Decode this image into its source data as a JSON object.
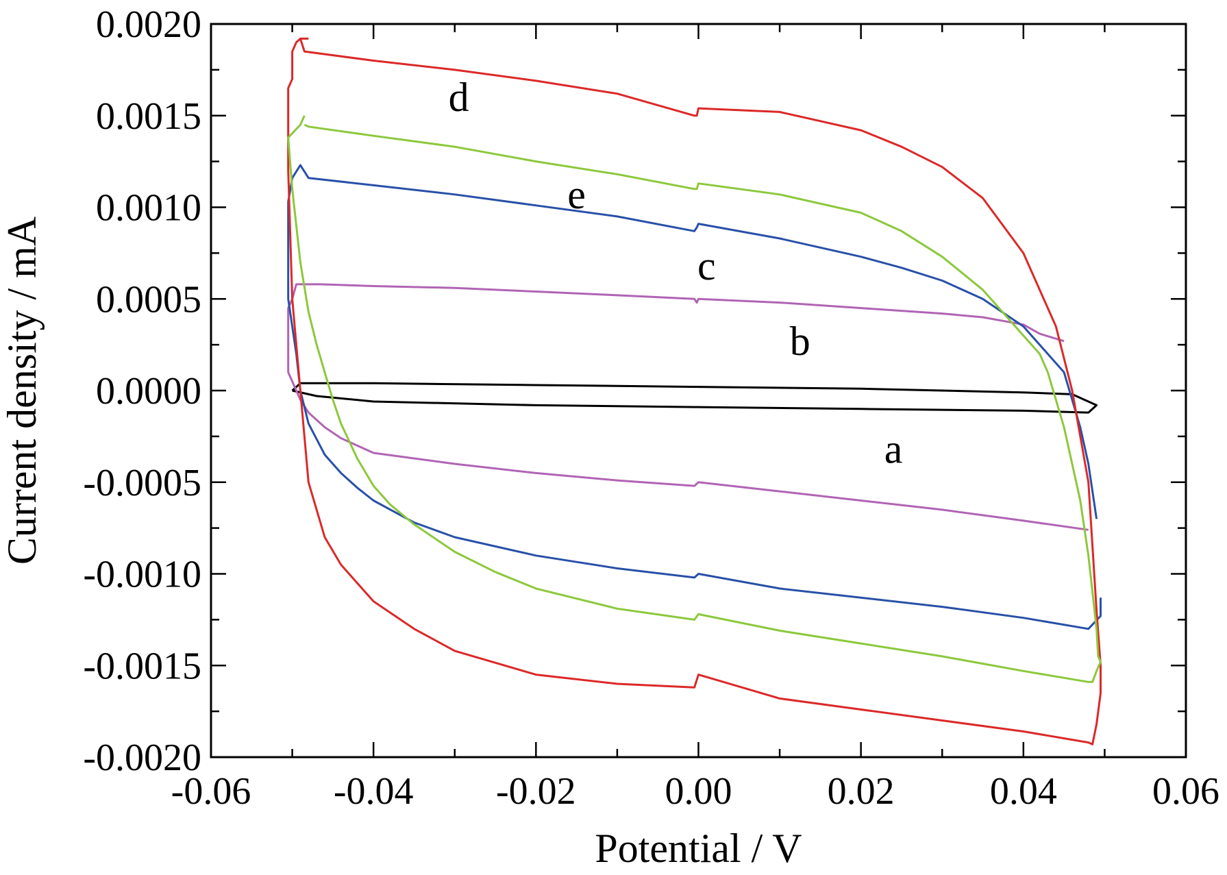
{
  "chart_data": {
    "type": "line",
    "xlabel": "Potential / V",
    "ylabel": "Current density / mA",
    "xlim": [
      -0.06,
      0.06
    ],
    "ylim": [
      -0.002,
      0.002
    ],
    "xticks": [
      -0.06,
      -0.04,
      -0.02,
      0.0,
      0.02,
      0.04,
      0.06
    ],
    "xtick_labels": [
      "-0.06",
      "-0.04",
      "-0.02",
      "0.00",
      "0.02",
      "0.04",
      "0.06"
    ],
    "yticks": [
      0.002,
      0.0015,
      0.001,
      0.0005,
      0.0,
      -0.0005,
      -0.001,
      -0.0015,
      -0.002
    ],
    "ytick_labels": [
      "0.0020",
      "0.0015",
      "0.0010",
      "0.0005",
      "0.0000",
      "-0.0005",
      "-0.0010",
      "-0.0015",
      "-0.0020"
    ],
    "grid": false,
    "series": [
      {
        "name": "a",
        "color": "#000000",
        "label_pos": [
          0.024,
          -0.00032
        ],
        "x": [
          -0.05,
          -0.049,
          -0.04,
          -0.02,
          0.0,
          0.02,
          0.04,
          0.046,
          0.049,
          0.048,
          0.04,
          0.02,
          0.0,
          -0.02,
          -0.04,
          -0.047,
          -0.05
        ],
        "y": [
          0.0,
          4e-05,
          4e-05,
          3e-05,
          2e-05,
          1e-05,
          -1e-05,
          -2e-05,
          -8e-05,
          -0.00012,
          -0.00011,
          -0.0001,
          -9e-05,
          -8e-05,
          -6e-05,
          -3e-05,
          0.0
        ]
      },
      {
        "name": "b",
        "color": "#b064b4",
        "label_pos": [
          0.0125,
          0.00027
        ],
        "x": [
          0.045,
          0.042,
          0.04,
          0.035,
          0.03,
          0.02,
          0.01,
          0.0,
          -0.0002,
          -0.0005,
          -0.01,
          -0.02,
          -0.03,
          -0.04,
          -0.0465,
          -0.049,
          -0.0495,
          -0.05,
          -0.0505,
          -0.0505,
          -0.049,
          -0.048,
          -0.046,
          -0.044,
          -0.042,
          -0.04,
          -0.03,
          -0.02,
          -0.01,
          -0.0005,
          0.0,
          0.01,
          0.02,
          0.03,
          0.04,
          0.048
        ],
        "y": [
          0.00027,
          0.00031,
          0.00036,
          0.0004,
          0.00042,
          0.00045,
          0.00048,
          0.0005,
          0.00048,
          0.0005,
          0.00052,
          0.00054,
          0.00056,
          0.00057,
          0.00058,
          0.00058,
          0.00058,
          0.0005,
          0.00045,
          0.0001,
          -5e-05,
          -0.00012,
          -0.0002,
          -0.00026,
          -0.0003,
          -0.00034,
          -0.0004,
          -0.00045,
          -0.00049,
          -0.00052,
          -0.0005,
          -0.00055,
          -0.0006,
          -0.00065,
          -0.00071,
          -0.00076
        ]
      },
      {
        "name": "c",
        "color": "#2850a8",
        "label_pos": [
          0.001,
          0.00068
        ],
        "x": [
          0.049,
          0.048,
          0.047,
          0.046,
          0.045,
          0.043,
          0.04,
          0.035,
          0.03,
          0.025,
          0.02,
          0.01,
          0.0,
          -0.0002,
          -0.0005,
          -0.01,
          -0.02,
          -0.03,
          -0.04,
          -0.048,
          -0.049,
          -0.05,
          -0.0505,
          -0.0505,
          -0.0495,
          -0.049,
          -0.048,
          -0.046,
          -0.044,
          -0.042,
          -0.04,
          -0.035,
          -0.03,
          -0.02,
          -0.01,
          -0.0005,
          0.0,
          0.01,
          0.02,
          0.03,
          0.04,
          0.048,
          0.0495,
          0.0495
        ],
        "y": [
          -0.0007,
          -0.0004,
          -0.0002,
          -5e-05,
          0.0001,
          0.0002,
          0.00035,
          0.0005,
          0.0006,
          0.00067,
          0.00073,
          0.00083,
          0.00091,
          0.00089,
          0.00087,
          0.00095,
          0.00101,
          0.00107,
          0.00112,
          0.00116,
          0.00123,
          0.00116,
          0.00103,
          0.0005,
          0.0002,
          0.0,
          -0.00018,
          -0.00035,
          -0.00045,
          -0.00053,
          -0.0006,
          -0.00072,
          -0.0008,
          -0.0009,
          -0.00097,
          -0.00102,
          -0.001,
          -0.00108,
          -0.00113,
          -0.00118,
          -0.00124,
          -0.0013,
          -0.00123,
          -0.00113
        ]
      },
      {
        "name": "d",
        "color": "#dc2828",
        "label_pos": [
          -0.0295,
          0.0016
        ],
        "x": [
          -0.049,
          -0.0495,
          -0.05,
          -0.05,
          -0.0505,
          -0.0505,
          -0.05,
          -0.049,
          -0.048,
          -0.046,
          -0.044,
          -0.042,
          -0.04,
          -0.035,
          -0.03,
          -0.02,
          -0.01,
          -0.0005,
          0.0,
          0.01,
          0.02,
          0.03,
          0.04,
          0.048,
          0.0485,
          0.049,
          0.0495,
          0.0495,
          0.049,
          0.048,
          0.046,
          0.044,
          0.04,
          0.035,
          0.03,
          0.025,
          0.02,
          0.01,
          0.0,
          -0.0002,
          -0.0005,
          -0.01,
          -0.02,
          -0.03,
          -0.04,
          -0.0485,
          -0.049,
          -0.048
        ],
        "y": [
          0.00192,
          0.0019,
          0.00185,
          0.0017,
          0.00165,
          0.0012,
          0.0005,
          0.0,
          -0.0005,
          -0.0008,
          -0.00095,
          -0.00105,
          -0.00115,
          -0.0013,
          -0.00142,
          -0.00155,
          -0.0016,
          -0.00162,
          -0.00155,
          -0.00168,
          -0.00174,
          -0.0018,
          -0.00186,
          -0.00192,
          -0.00193,
          -0.00182,
          -0.00165,
          -0.0015,
          -0.0012,
          -0.0005,
          0.0,
          0.00035,
          0.00075,
          0.00105,
          0.00122,
          0.00133,
          0.00142,
          0.00152,
          0.00154,
          0.0015,
          0.0015,
          0.00162,
          0.00169,
          0.00175,
          0.0018,
          0.00185,
          0.00192,
          0.00192
        ]
      },
      {
        "name": "e",
        "color": "#8cc83c",
        "label_pos": [
          -0.015,
          0.00107
        ],
        "x": [
          -0.0485,
          -0.049,
          -0.0505,
          -0.05,
          -0.049,
          -0.048,
          -0.047,
          -0.046,
          -0.045,
          -0.044,
          -0.042,
          -0.04,
          -0.038,
          -0.035,
          -0.03,
          -0.025,
          -0.02,
          -0.01,
          -0.0005,
          0.0,
          0.01,
          0.02,
          0.03,
          0.04,
          0.048,
          0.0485,
          0.049,
          0.0495,
          0.0492,
          0.049,
          0.048,
          0.047,
          0.046,
          0.045,
          0.044,
          0.043,
          0.042,
          0.04,
          0.038,
          0.035,
          0.03,
          0.025,
          0.02,
          0.01,
          0.0,
          -0.0002,
          -0.0005,
          -0.01,
          -0.02,
          -0.03,
          -0.04,
          -0.048,
          -0.0485
        ],
        "y": [
          0.0015,
          0.00145,
          0.00138,
          0.0011,
          0.0007,
          0.00043,
          0.00025,
          0.0001,
          -5e-05,
          -0.00018,
          -0.00037,
          -0.00052,
          -0.00062,
          -0.00073,
          -0.00088,
          -0.00099,
          -0.00108,
          -0.00119,
          -0.00125,
          -0.00122,
          -0.00131,
          -0.00138,
          -0.00145,
          -0.00153,
          -0.00159,
          -0.00159,
          -0.00153,
          -0.00148,
          -0.00145,
          -0.0013,
          -0.0009,
          -0.0006,
          -0.0004,
          -0.0002,
          -5e-05,
          0.0001,
          0.0002,
          0.0003,
          0.0004,
          0.00055,
          0.00073,
          0.00087,
          0.00097,
          0.00107,
          0.00113,
          0.0011,
          0.0011,
          0.00118,
          0.00125,
          0.00133,
          0.00139,
          0.00144,
          0.00145
        ]
      }
    ]
  }
}
